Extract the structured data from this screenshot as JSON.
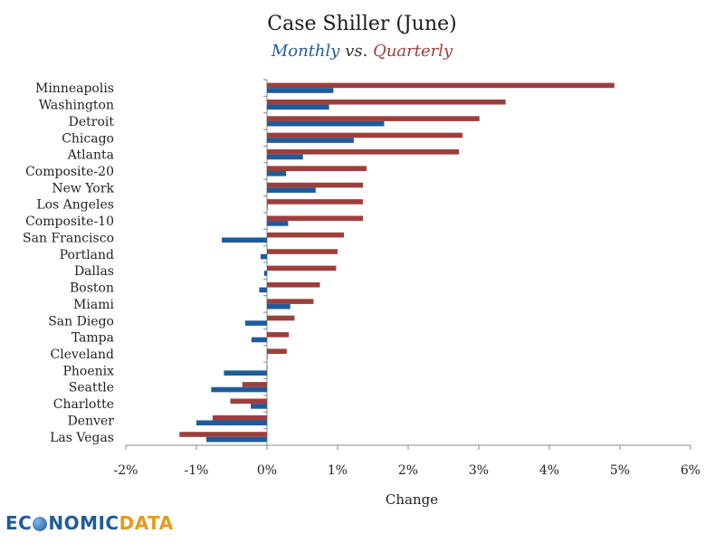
{
  "chart_data": {
    "type": "bar",
    "orientation": "horizontal",
    "title": "Case Shiller (June)",
    "subtitle": {
      "monthly": "Monthly",
      "vs": "vs.",
      "quarterly": "Quarterly"
    },
    "xlabel": "Change",
    "xlim": [
      -2,
      6
    ],
    "xticks": [
      -2,
      -1,
      0,
      1,
      2,
      3,
      4,
      5,
      6
    ],
    "xtick_labels": [
      "-2%",
      "-1%",
      "0%",
      "1%",
      "2%",
      "3%",
      "4%",
      "5%",
      "6%"
    ],
    "categories": [
      "Minneapolis",
      "Washington",
      "Detroit",
      "Chicago",
      "Atlanta",
      "Composite-20",
      "New York",
      "Los Angeles",
      "Composite-10",
      "San Francisco",
      "Portland",
      "Dallas",
      "Boston",
      "Miami",
      "San Diego",
      "Tampa",
      "Cleveland",
      "Phoenix",
      "Seattle",
      "Charlotte",
      "Denver",
      "Las Vegas"
    ],
    "series": [
      {
        "name": "Quarterly",
        "color": "#9c3f3c",
        "values": [
          4.92,
          3.38,
          3.01,
          2.77,
          2.72,
          1.41,
          1.36,
          1.36,
          1.36,
          1.09,
          1.0,
          0.98,
          0.75,
          0.66,
          0.39,
          0.31,
          0.28,
          0.0,
          -0.35,
          -0.52,
          -0.77,
          -1.24
        ]
      },
      {
        "name": "Monthly",
        "color": "#1f5b9a",
        "values": [
          0.94,
          0.88,
          1.66,
          1.23,
          0.51,
          0.27,
          0.69,
          0.01,
          0.3,
          -0.64,
          -0.09,
          -0.04,
          -0.11,
          0.33,
          -0.31,
          -0.22,
          0.0,
          -0.61,
          -0.79,
          -0.23,
          -1.0,
          -0.86
        ]
      }
    ]
  },
  "logo": {
    "part1": "EC",
    "part2": "NOMIC",
    "part3": "DATA"
  }
}
